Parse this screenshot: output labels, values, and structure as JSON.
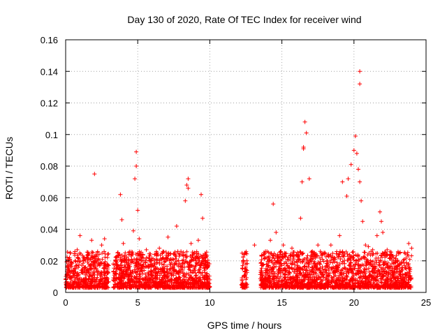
{
  "chart_data": {
    "type": "scatter",
    "title": "Day 130 of 2020, Rate Of TEC Index for receiver wind",
    "xlabel": "GPS time / hours",
    "ylabel": "ROTI / TECUs",
    "xlim": [
      0,
      25
    ],
    "ylim": [
      0,
      0.16
    ],
    "x_ticks": [
      0,
      5,
      10,
      15,
      20,
      25
    ],
    "y_ticks": [
      0,
      0.02,
      0.04,
      0.06,
      0.08,
      0.1,
      0.12,
      0.14,
      0.16
    ],
    "x_tick_labels": [
      "0",
      "5",
      "10",
      "15",
      "20",
      "25"
    ],
    "y_tick_labels": [
      "0",
      "0.02",
      "0.04",
      "0.06",
      "0.08",
      "0.1",
      "0.12",
      "0.14",
      "0.16"
    ],
    "grid": true,
    "marker": "+",
    "series": [
      {
        "color": "#ff0000",
        "x": [
          0.1,
          0.3,
          0.5,
          0.8,
          1.0,
          1.1,
          1.3,
          1.6,
          1.8,
          2.0,
          2.3,
          2.5,
          2.7,
          2.9,
          3.3,
          3.6,
          3.8,
          3.9,
          4.0,
          4.2,
          4.5,
          4.7,
          4.8,
          4.9,
          5.0,
          5.1,
          5.3,
          5.6,
          5.9,
          6.2,
          6.5,
          6.8,
          7.1,
          7.4,
          7.7,
          8.0,
          8.3,
          8.4,
          8.5,
          8.7,
          9.0,
          9.2,
          9.4,
          9.5,
          9.6,
          9.8,
          10.0,
          12.3,
          12.4,
          12.5,
          13.1,
          13.6,
          13.9,
          14.2,
          14.4,
          14.6,
          14.9,
          15.1,
          15.4,
          15.7,
          16.0,
          16.3,
          16.4,
          16.5,
          16.6,
          16.7,
          16.9,
          17.2,
          17.5,
          17.8,
          18.1,
          18.4,
          18.7,
          19.0,
          19.2,
          19.5,
          19.6,
          19.8,
          20.0,
          20.1,
          20.2,
          20.3,
          20.4,
          20.5,
          20.6,
          20.8,
          21.0,
          21.3,
          21.6,
          21.8,
          21.9,
          22.0,
          22.3,
          22.6,
          22.9,
          23.2,
          23.5,
          23.8,
          24.0,
          2.0,
          4.9,
          8.5,
          16.5,
          20.4,
          20.4
        ],
        "y": [
          0.016,
          0.021,
          0.012,
          0.027,
          0.036,
          0.014,
          0.022,
          0.018,
          0.033,
          0.015,
          0.012,
          0.03,
          0.034,
          0.016,
          0.018,
          0.025,
          0.062,
          0.046,
          0.031,
          0.019,
          0.012,
          0.039,
          0.072,
          0.08,
          0.052,
          0.034,
          0.015,
          0.027,
          0.018,
          0.013,
          0.028,
          0.021,
          0.035,
          0.016,
          0.042,
          0.026,
          0.058,
          0.068,
          0.066,
          0.031,
          0.02,
          0.033,
          0.062,
          0.047,
          0.022,
          0.012,
          0.008,
          0.02,
          0.01,
          0.016,
          0.03,
          0.017,
          0.022,
          0.033,
          0.056,
          0.038,
          0.026,
          0.03,
          0.017,
          0.028,
          0.024,
          0.047,
          0.07,
          0.091,
          0.108,
          0.101,
          0.072,
          0.018,
          0.03,
          0.024,
          0.009,
          0.03,
          0.021,
          0.036,
          0.07,
          0.061,
          0.072,
          0.081,
          0.09,
          0.099,
          0.088,
          0.078,
          0.07,
          0.058,
          0.045,
          0.03,
          0.029,
          0.027,
          0.036,
          0.051,
          0.045,
          0.038,
          0.027,
          0.024,
          0.019,
          0.025,
          0.021,
          0.031,
          0.028,
          0.075,
          0.089,
          0.072,
          0.092,
          0.14,
          0.132
        ]
      }
    ]
  }
}
